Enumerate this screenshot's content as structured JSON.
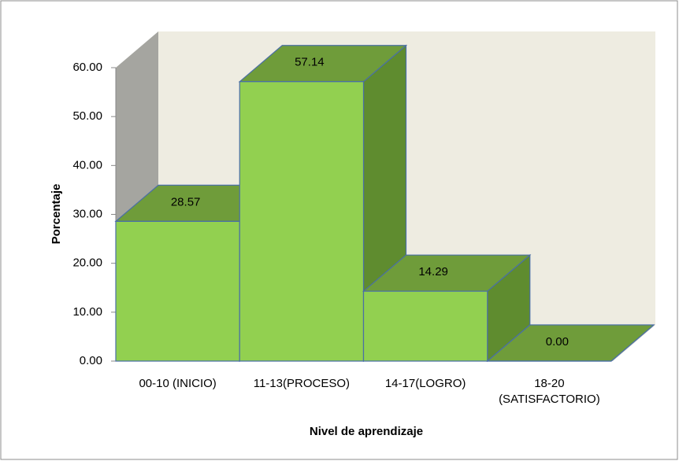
{
  "chart_data": {
    "type": "bar3d",
    "categories": [
      "00-10 (INICIO)",
      "11-13(PROCESO)",
      "14-17(LOGRO)",
      "18-20\n(SATISFACTORIO)"
    ],
    "values": [
      28.57,
      57.14,
      14.29,
      0
    ],
    "value_labels": [
      "28.57",
      "57.14",
      "14.29",
      "0.00"
    ],
    "color": "#92d050",
    "xlabel": "Nivel de aprendizaje",
    "ylabel": "Porcentaje",
    "ylim": [
      0,
      60
    ],
    "yticks": [
      {
        "value": 0,
        "label": "0.00"
      },
      {
        "value": 10,
        "label": "10.00"
      },
      {
        "value": 20,
        "label": "20.00"
      },
      {
        "value": 30,
        "label": "30.00"
      },
      {
        "value": 40,
        "label": "40.00"
      },
      {
        "value": 50,
        "label": "50.00"
      },
      {
        "value": 60,
        "label": "60.00"
      }
    ],
    "grid": false
  }
}
